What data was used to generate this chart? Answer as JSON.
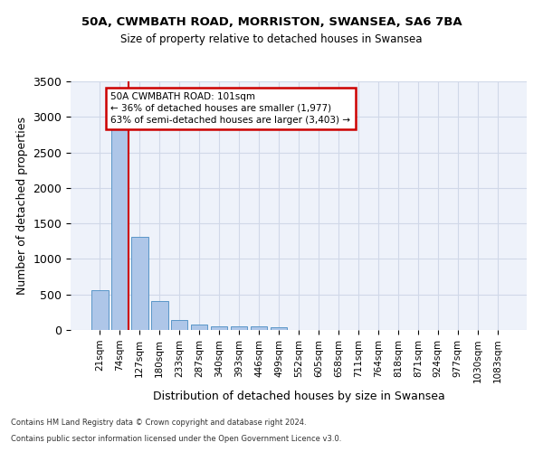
{
  "title1": "50A, CWMBATH ROAD, MORRISTON, SWANSEA, SA6 7BA",
  "title2": "Size of property relative to detached houses in Swansea",
  "xlabel": "Distribution of detached houses by size in Swansea",
  "ylabel": "Number of detached properties",
  "footnote1": "Contains HM Land Registry data © Crown copyright and database right 2024.",
  "footnote2": "Contains public sector information licensed under the Open Government Licence v3.0.",
  "bar_labels": [
    "21sqm",
    "74sqm",
    "127sqm",
    "180sqm",
    "233sqm",
    "287sqm",
    "340sqm",
    "393sqm",
    "446sqm",
    "499sqm",
    "552sqm",
    "605sqm",
    "658sqm",
    "711sqm",
    "764sqm",
    "818sqm",
    "871sqm",
    "924sqm",
    "977sqm",
    "1030sqm",
    "1083sqm"
  ],
  "bar_values": [
    560,
    2900,
    1310,
    410,
    145,
    80,
    55,
    50,
    45,
    40,
    0,
    0,
    0,
    0,
    0,
    0,
    0,
    0,
    0,
    0,
    0
  ],
  "bar_color": "#aec6e8",
  "bar_edge_color": "#5a96c8",
  "grid_color": "#d0d8e8",
  "background_color": "#eef2fa",
  "vline_x": 1.45,
  "vline_color": "#cc0000",
  "annotation_text": "50A CWMBATH ROAD: 101sqm\n← 36% of detached houses are smaller (1,977)\n63% of semi-detached houses are larger (3,403) →",
  "annotation_box_color": "#ffffff",
  "annotation_box_edge": "#cc0000",
  "ylim": [
    0,
    3500
  ],
  "yticks": [
    0,
    500,
    1000,
    1500,
    2000,
    2500,
    3000,
    3500
  ]
}
